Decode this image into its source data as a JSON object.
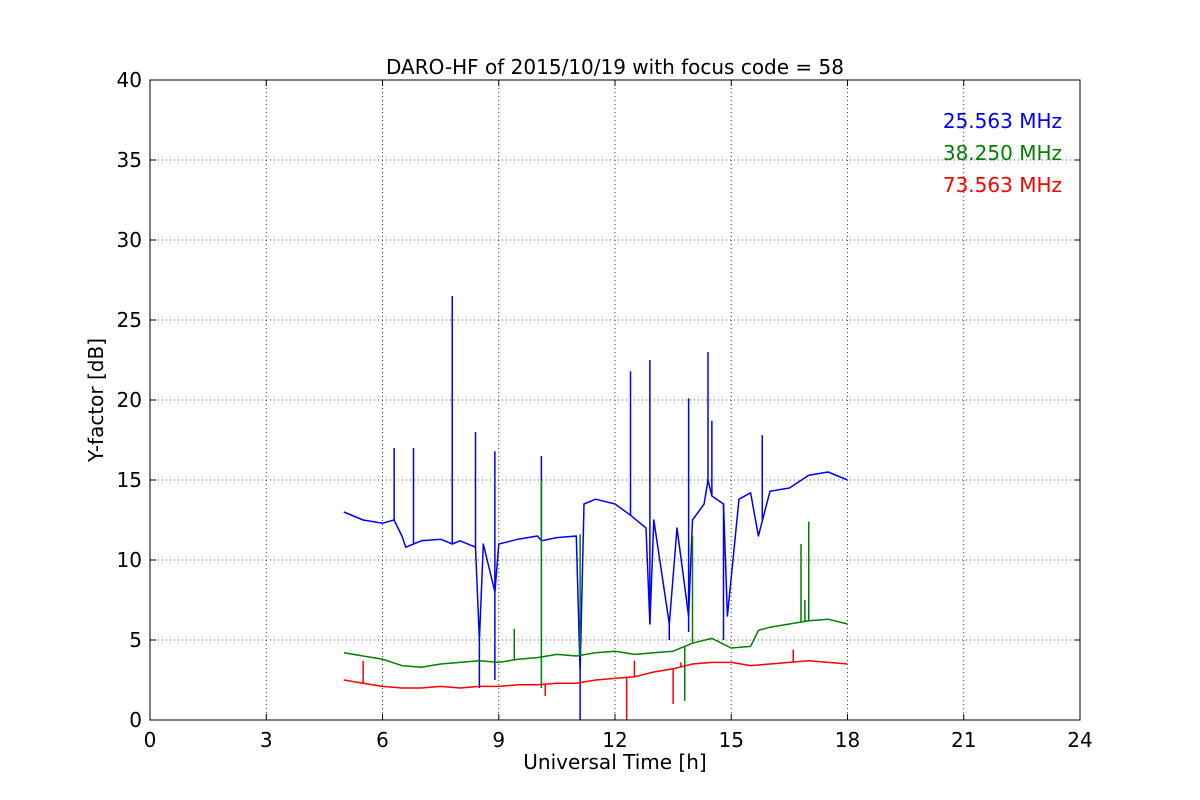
{
  "chart_data": {
    "type": "line",
    "title": "DARO-HF of 2015/10/19 with focus code = 58",
    "xlabel": "Universal Time [h]",
    "ylabel": "Y-factor [dB]",
    "xlim": [
      0,
      24
    ],
    "ylim": [
      0,
      40
    ],
    "x_ticks": [
      "0",
      "3",
      "6",
      "9",
      "12",
      "15",
      "18",
      "21",
      "24"
    ],
    "y_ticks": [
      "0",
      "5",
      "10",
      "15",
      "20",
      "25",
      "30",
      "35",
      "40"
    ],
    "grid": true,
    "legend_position": "top-right",
    "series": [
      {
        "name": "25.563 MHz",
        "color": "#0000ff",
        "x": [
          5.0,
          5.5,
          6.0,
          6.3,
          6.5,
          6.6,
          6.8,
          7.0,
          7.5,
          7.8,
          8.0,
          8.4,
          8.5,
          8.6,
          8.9,
          9.0,
          9.5,
          10.0,
          10.1,
          10.5,
          11.0,
          11.1,
          11.2,
          11.5,
          12.0,
          12.4,
          12.8,
          12.9,
          13.0,
          13.4,
          13.6,
          13.9,
          14.0,
          14.3,
          14.4,
          14.5,
          14.8,
          14.9,
          15.2,
          15.5,
          15.7,
          16.0,
          16.5,
          17.0,
          17.5,
          18.0
        ],
        "y": [
          13.0,
          12.5,
          12.3,
          12.5,
          11.5,
          10.8,
          11.0,
          11.2,
          11.3,
          11.0,
          11.2,
          10.8,
          5.0,
          11.0,
          8.0,
          11.0,
          11.3,
          11.5,
          11.2,
          11.4,
          11.5,
          3.0,
          13.5,
          13.8,
          13.5,
          12.8,
          12.0,
          6.0,
          12.5,
          6.0,
          12.0,
          6.5,
          12.5,
          13.5,
          15.0,
          14.0,
          13.5,
          6.5,
          13.8,
          14.2,
          11.5,
          14.3,
          14.5,
          15.3,
          15.5,
          15.0
        ],
        "spikes": [
          {
            "x": 6.3,
            "y": 17.0
          },
          {
            "x": 6.8,
            "y": 17.0
          },
          {
            "x": 7.8,
            "y": 26.5
          },
          {
            "x": 8.4,
            "y": 18.0
          },
          {
            "x": 8.5,
            "y": 2.0
          },
          {
            "x": 8.9,
            "y": 16.8
          },
          {
            "x": 8.9,
            "y": 2.5
          },
          {
            "x": 10.1,
            "y": 16.5
          },
          {
            "x": 11.1,
            "y": 0.0
          },
          {
            "x": 12.4,
            "y": 21.8
          },
          {
            "x": 12.9,
            "y": 22.5
          },
          {
            "x": 13.4,
            "y": 5.0
          },
          {
            "x": 13.9,
            "y": 20.1
          },
          {
            "x": 13.9,
            "y": 5.5
          },
          {
            "x": 14.4,
            "y": 23.0
          },
          {
            "x": 14.5,
            "y": 18.7
          },
          {
            "x": 14.8,
            "y": 5.0
          },
          {
            "x": 15.8,
            "y": 17.8
          }
        ]
      },
      {
        "name": "38.250 MHz",
        "color": "#008000",
        "x": [
          5.0,
          5.5,
          6.0,
          6.5,
          7.0,
          7.5,
          8.0,
          8.5,
          9.0,
          9.5,
          10.0,
          10.5,
          11.0,
          11.5,
          12.0,
          12.5,
          13.0,
          13.5,
          14.0,
          14.5,
          15.0,
          15.5,
          15.7,
          16.0,
          16.5,
          17.0,
          17.5,
          18.0
        ],
        "y": [
          4.2,
          4.0,
          3.8,
          3.4,
          3.3,
          3.5,
          3.6,
          3.7,
          3.6,
          3.8,
          3.9,
          4.1,
          4.0,
          4.2,
          4.3,
          4.1,
          4.2,
          4.3,
          4.8,
          5.1,
          4.5,
          4.6,
          5.6,
          5.8,
          6.0,
          6.2,
          6.3,
          6.0
        ],
        "spikes": [
          {
            "x": 9.4,
            "y": 5.7
          },
          {
            "x": 10.1,
            "y": 15.0
          },
          {
            "x": 10.1,
            "y": 2.0
          },
          {
            "x": 11.1,
            "y": 11.6
          },
          {
            "x": 13.8,
            "y": 1.2
          },
          {
            "x": 14.0,
            "y": 11.5
          },
          {
            "x": 16.8,
            "y": 11.0
          },
          {
            "x": 17.0,
            "y": 12.4
          },
          {
            "x": 16.9,
            "y": 7.5
          }
        ]
      },
      {
        "name": "73.563 MHz",
        "color": "#ff0000",
        "x": [
          5.0,
          5.5,
          6.0,
          6.5,
          7.0,
          7.5,
          8.0,
          8.5,
          9.0,
          9.5,
          10.0,
          10.5,
          11.0,
          11.5,
          12.0,
          12.5,
          13.0,
          13.5,
          14.0,
          14.5,
          15.0,
          15.5,
          16.0,
          16.5,
          17.0,
          17.5,
          18.0
        ],
        "y": [
          2.5,
          2.3,
          2.1,
          2.0,
          2.0,
          2.1,
          2.0,
          2.1,
          2.1,
          2.2,
          2.2,
          2.3,
          2.3,
          2.5,
          2.6,
          2.7,
          3.0,
          3.2,
          3.5,
          3.6,
          3.6,
          3.4,
          3.5,
          3.6,
          3.7,
          3.6,
          3.5
        ],
        "spikes": [
          {
            "x": 5.5,
            "y": 3.7
          },
          {
            "x": 10.2,
            "y": 1.5
          },
          {
            "x": 12.3,
            "y": 0.0
          },
          {
            "x": 12.5,
            "y": 3.7
          },
          {
            "x": 13.5,
            "y": 1.0
          },
          {
            "x": 13.7,
            "y": 3.6
          },
          {
            "x": 16.6,
            "y": 4.4
          }
        ]
      }
    ]
  }
}
